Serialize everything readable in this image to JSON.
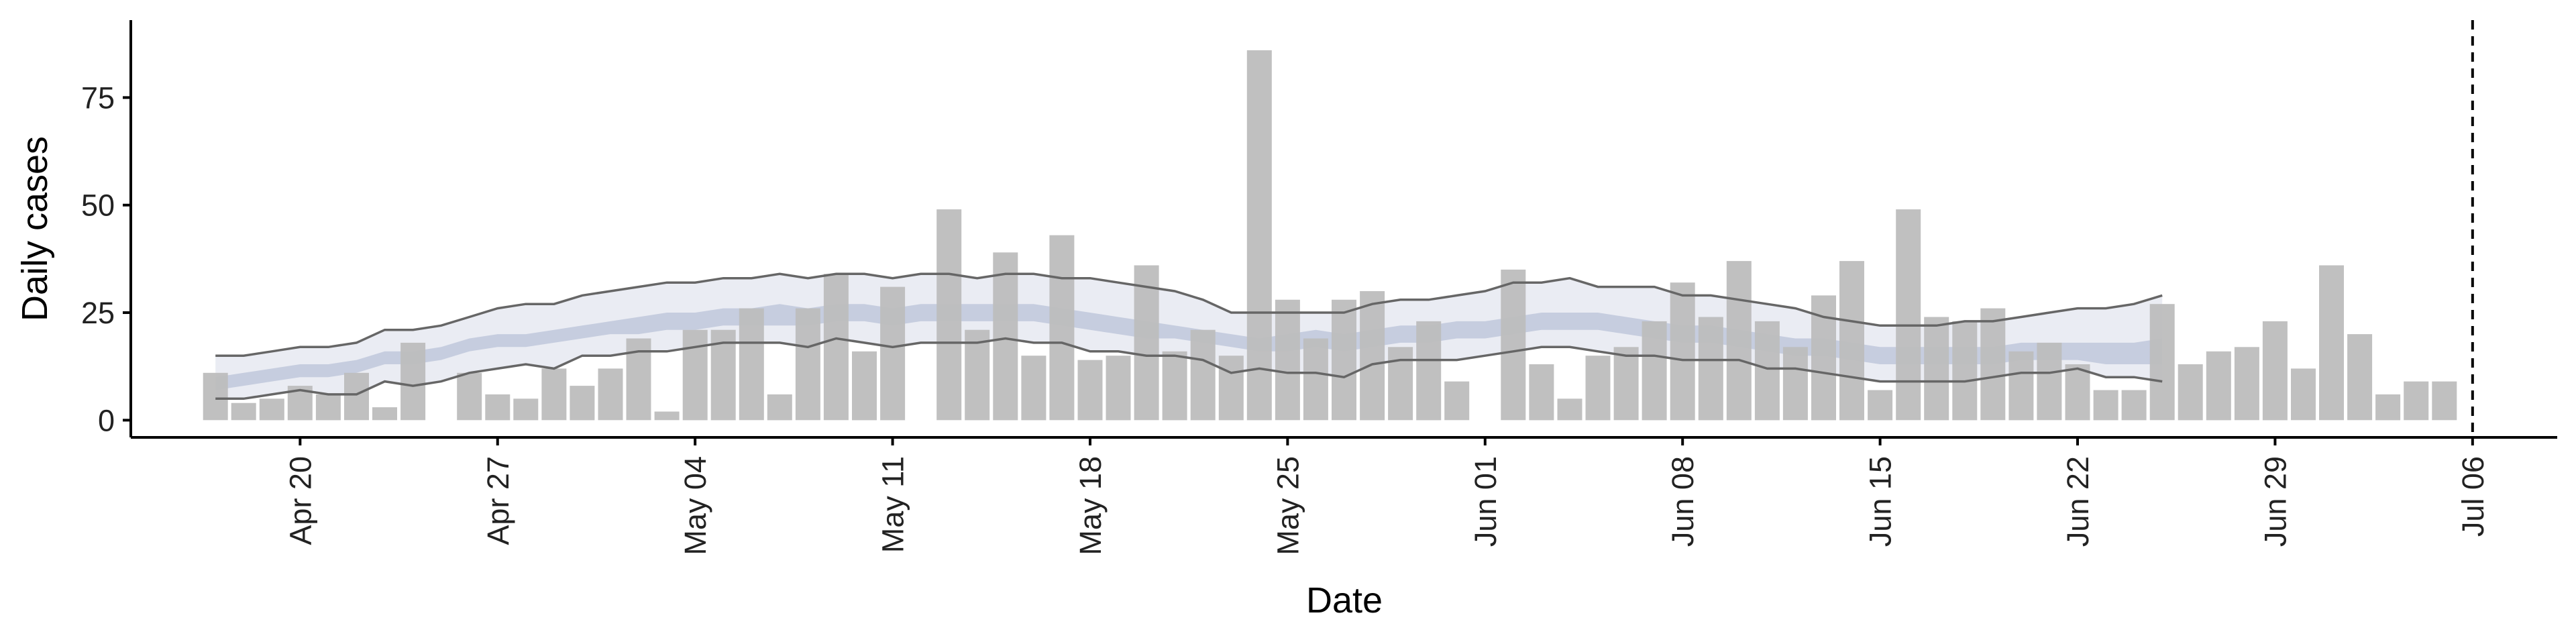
{
  "chart_data": {
    "type": "bar",
    "xlabel": "Date",
    "ylabel": "Daily cases",
    "ylim": [
      -4,
      93
    ],
    "yticks": [
      0,
      25,
      50,
      75
    ],
    "xlim": [
      "2020-04-14",
      "2020-07-09"
    ],
    "x_tick_labels": [
      {
        "date": "2020-04-20",
        "label": "Apr 20"
      },
      {
        "date": "2020-04-27",
        "label": "Apr 27"
      },
      {
        "date": "2020-05-04",
        "label": "May 04"
      },
      {
        "date": "2020-05-11",
        "label": "May 11"
      },
      {
        "date": "2020-05-18",
        "label": "May 18"
      },
      {
        "date": "2020-05-25",
        "label": "May 25"
      },
      {
        "date": "2020-06-01",
        "label": "Jun 01"
      },
      {
        "date": "2020-06-08",
        "label": "Jun 08"
      },
      {
        "date": "2020-06-15",
        "label": "Jun 15"
      },
      {
        "date": "2020-06-22",
        "label": "Jun 22"
      },
      {
        "date": "2020-06-29",
        "label": "Jun 29"
      },
      {
        "date": "2020-07-06",
        "label": "Jul 06"
      }
    ],
    "vline_date": "2020-07-06",
    "grid": false,
    "bars": {
      "start_date": "2020-04-17",
      "color": "#bdbdbd",
      "values": [
        11,
        4,
        5,
        8,
        6,
        11,
        3,
        18,
        0,
        11,
        6,
        5,
        12,
        8,
        12,
        19,
        2,
        21,
        21,
        26,
        6,
        26,
        34,
        16,
        31,
        0,
        49,
        21,
        39,
        15,
        43,
        14,
        15,
        36,
        16,
        21,
        15,
        86,
        28,
        19,
        28,
        30,
        17,
        23,
        9,
        0,
        35,
        13,
        5,
        15,
        17,
        23,
        32,
        24,
        37,
        23,
        17,
        29,
        37,
        7,
        49,
        24,
        23,
        26,
        16,
        18,
        13,
        7,
        7,
        27,
        13,
        16,
        17,
        23,
        12,
        36,
        20,
        6,
        9,
        9
      ]
    },
    "estimate": {
      "start_date": "2020-04-17",
      "outer_color": "#e8eaf2",
      "inner_color": "#c2cadd",
      "outer_lower": [
        5,
        5,
        6,
        7,
        6,
        6,
        9,
        8,
        9,
        11,
        12,
        13,
        12,
        15,
        15,
        16,
        16,
        17,
        18,
        18,
        18,
        17,
        19,
        18,
        17,
        18,
        18,
        18,
        19,
        18,
        18,
        16,
        16,
        15,
        15,
        14,
        11,
        12,
        11,
        11,
        10,
        13,
        14,
        14,
        14,
        15,
        16,
        17,
        17,
        16,
        15,
        15,
        14,
        14,
        14,
        12,
        12,
        11,
        10,
        9,
        9,
        9,
        9,
        10,
        11,
        11,
        12,
        10,
        10,
        9
      ],
      "outer_upper": [
        15,
        15,
        16,
        17,
        17,
        18,
        21,
        21,
        22,
        24,
        26,
        27,
        27,
        29,
        30,
        31,
        32,
        32,
        33,
        33,
        34,
        33,
        34,
        34,
        33,
        34,
        34,
        33,
        34,
        34,
        33,
        33,
        32,
        31,
        30,
        28,
        25,
        25,
        25,
        25,
        25,
        27,
        28,
        28,
        29,
        30,
        32,
        32,
        33,
        31,
        31,
        31,
        29,
        29,
        28,
        27,
        26,
        24,
        23,
        22,
        22,
        22,
        23,
        23,
        24,
        25,
        26,
        26,
        27,
        29
      ],
      "inner_lower": [
        7,
        8,
        9,
        10,
        10,
        11,
        13,
        13,
        14,
        16,
        17,
        17,
        18,
        19,
        20,
        20,
        21,
        21,
        22,
        22,
        22,
        22,
        23,
        23,
        22,
        23,
        23,
        23,
        23,
        23,
        22,
        21,
        20,
        19,
        19,
        18,
        17,
        16,
        16,
        17,
        16,
        17,
        18,
        18,
        19,
        19,
        20,
        21,
        21,
        21,
        20,
        19,
        18,
        18,
        17,
        16,
        15,
        15,
        14,
        13,
        13,
        13,
        13,
        13,
        14,
        14,
        14,
        13,
        13,
        13
      ],
      "inner_upper": [
        10,
        11,
        12,
        13,
        13,
        14,
        16,
        16,
        17,
        19,
        20,
        20,
        21,
        22,
        23,
        24,
        25,
        25,
        26,
        26,
        27,
        26,
        27,
        27,
        26,
        27,
        27,
        27,
        27,
        27,
        26,
        25,
        24,
        23,
        22,
        21,
        20,
        19,
        20,
        21,
        20,
        21,
        22,
        22,
        23,
        23,
        24,
        25,
        25,
        25,
        24,
        23,
        22,
        22,
        21,
        20,
        19,
        19,
        18,
        17,
        17,
        17,
        17,
        17,
        18,
        18,
        18,
        18,
        18,
        19
      ]
    },
    "lines": {
      "color": "#666666"
    }
  }
}
